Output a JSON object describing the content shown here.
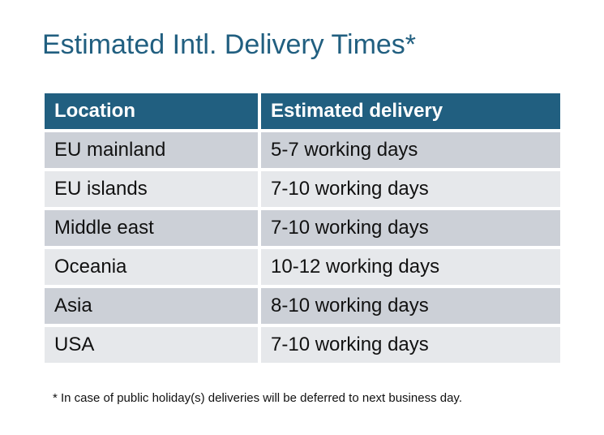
{
  "title": "Estimated Intl. Delivery Times*",
  "colors": {
    "header": "#215f80",
    "row_odd": "#ccd0d7",
    "row_even": "#e6e8eb"
  },
  "table": {
    "headers": [
      "Location",
      "Estimated delivery"
    ],
    "rows": [
      [
        "EU mainland",
        "5-7 working days"
      ],
      [
        "EU islands",
        "7-10 working days"
      ],
      [
        "Middle east",
        "7-10 working days"
      ],
      [
        "Oceania",
        "10-12 working days"
      ],
      [
        "Asia",
        "8-10 working days"
      ],
      [
        "USA",
        "7-10 working days"
      ]
    ]
  },
  "footnote": "* In case of public holiday(s) deliveries will be deferred to next business day."
}
